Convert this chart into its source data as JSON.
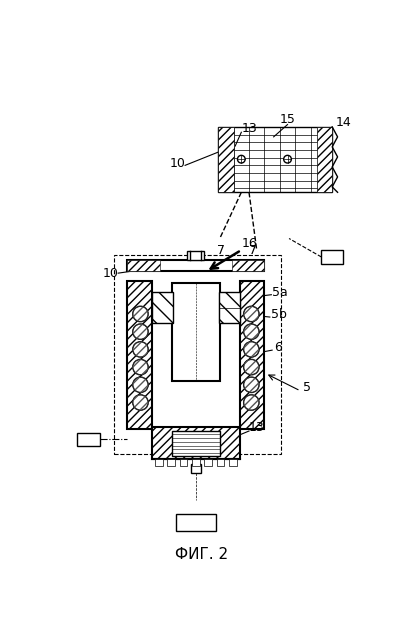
{
  "title": "ФИГ. 2",
  "bg_color": "#ffffff",
  "line_color": "#000000"
}
